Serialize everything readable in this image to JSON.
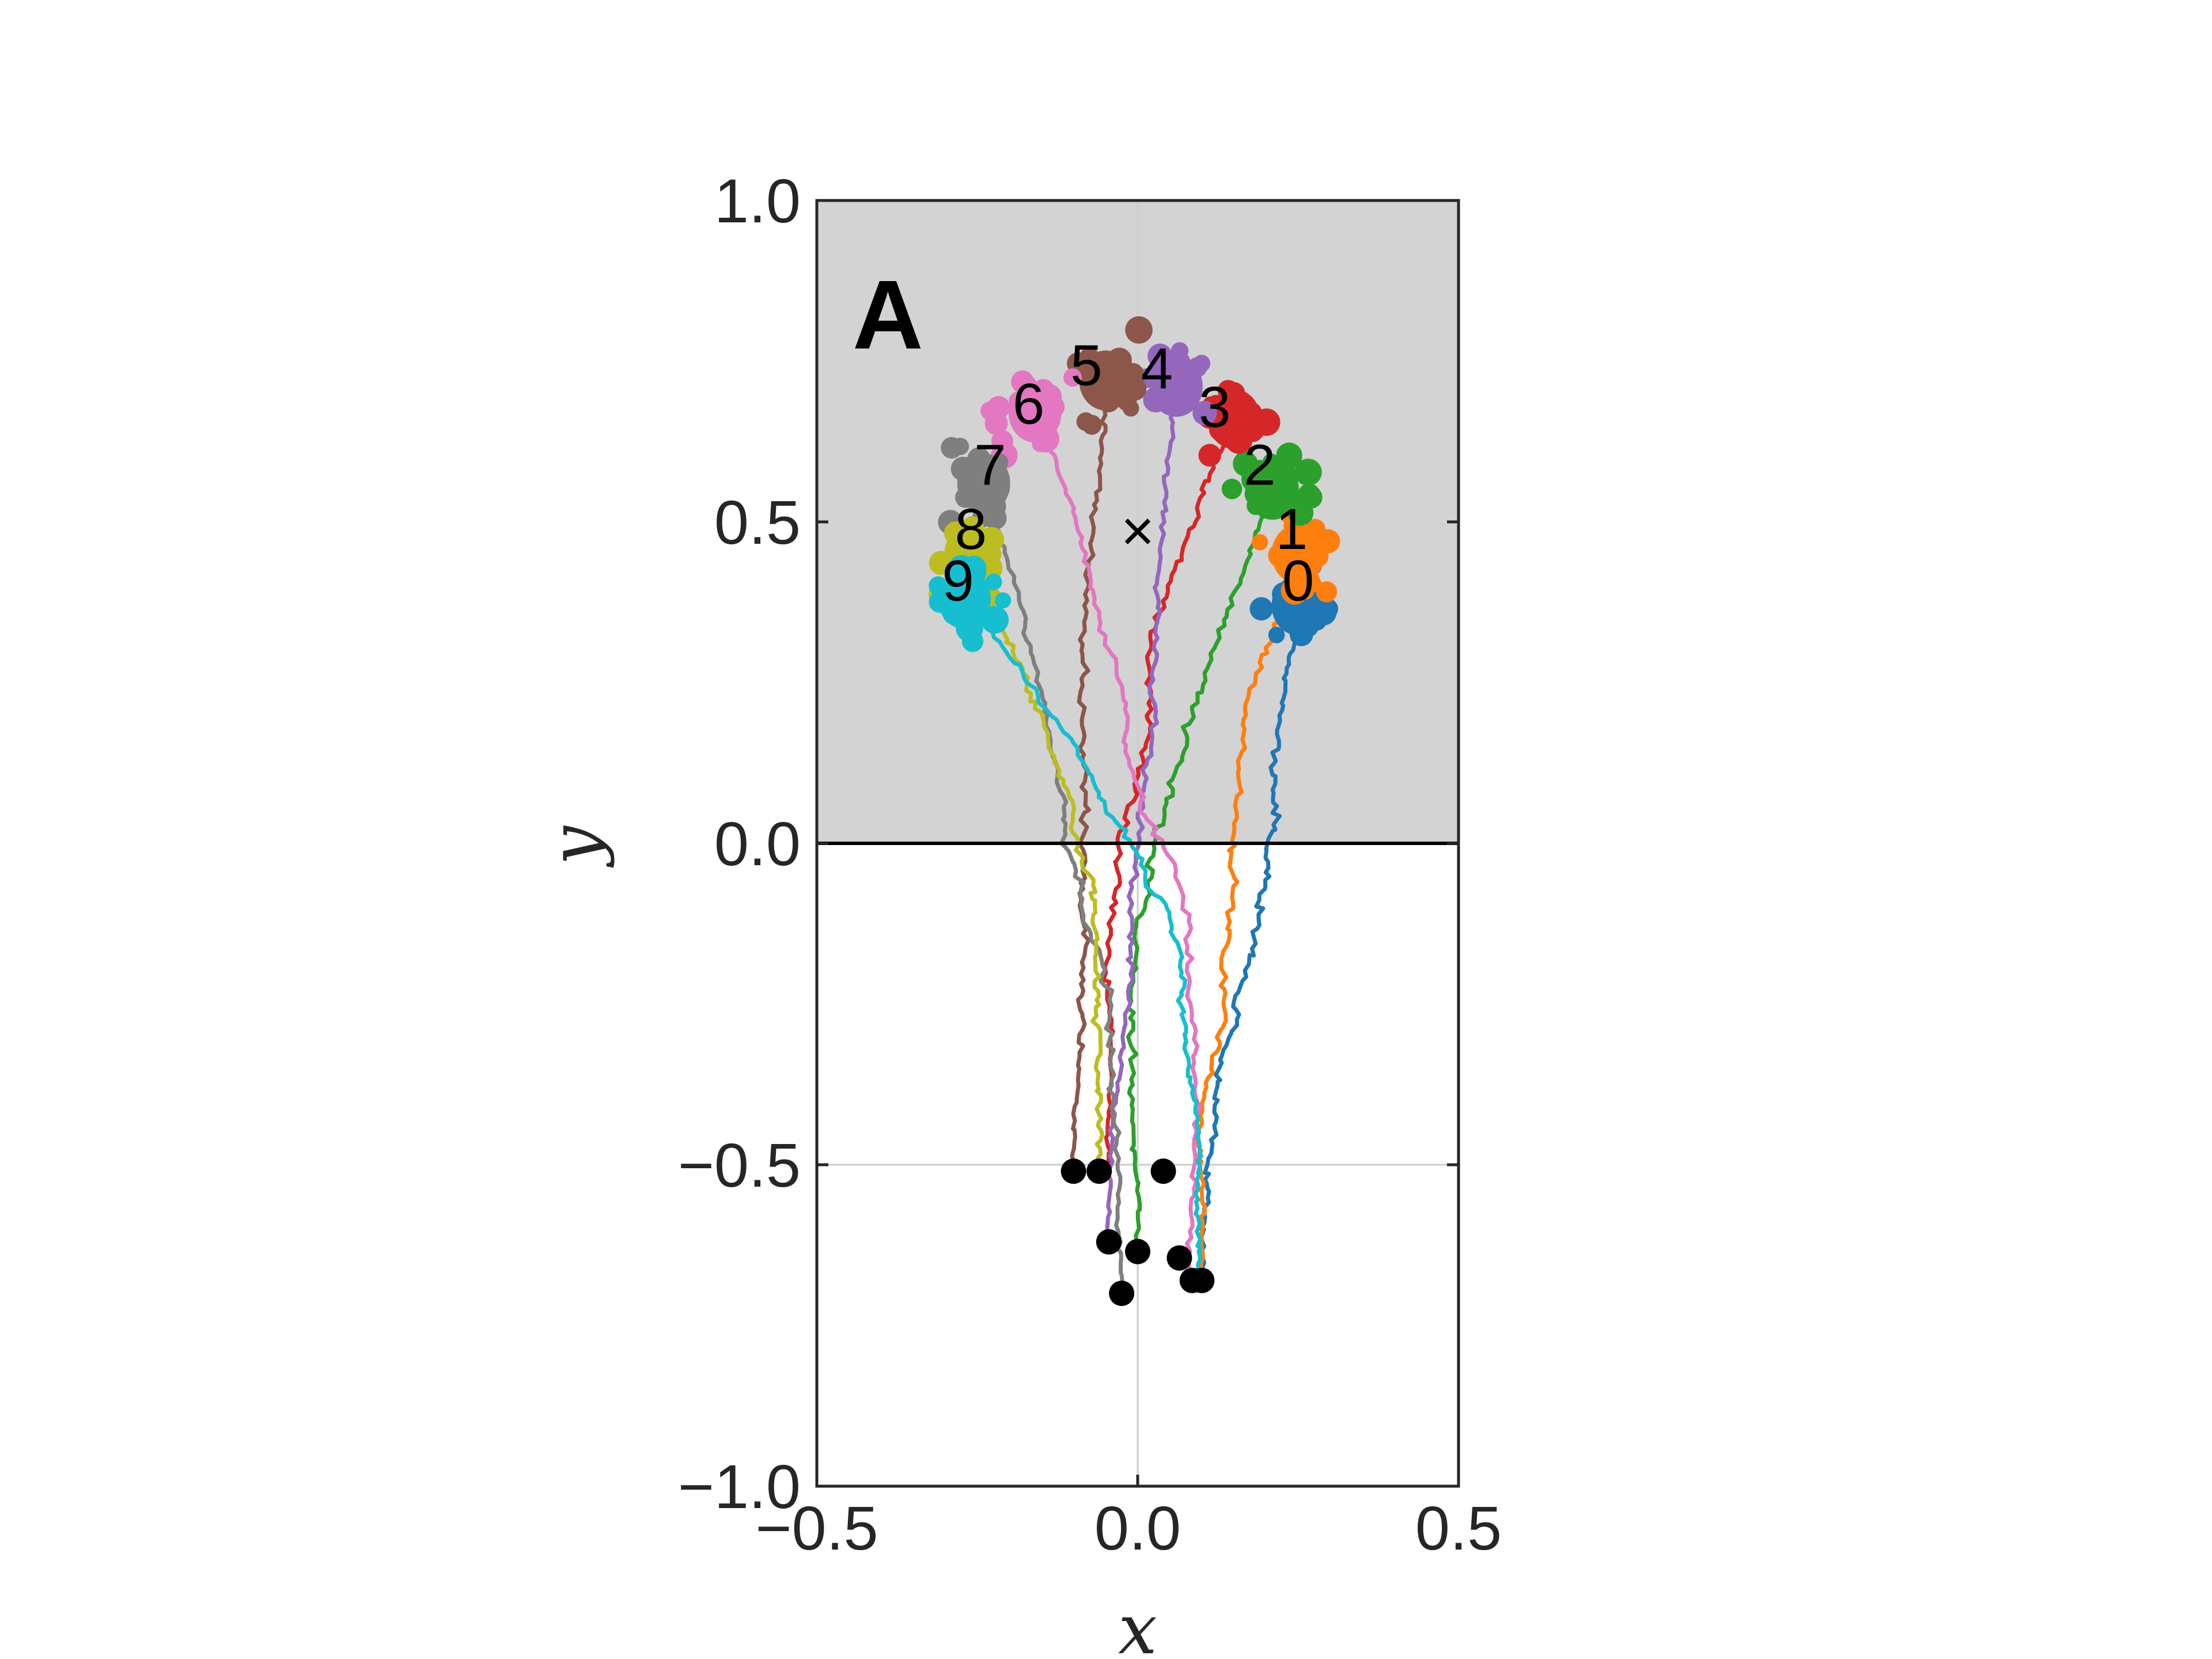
{
  "chart_data": {
    "type": "line",
    "panel_label": "A",
    "xlabel": "x",
    "ylabel": "y",
    "xlim": [
      -0.5,
      0.5
    ],
    "ylim": [
      -1.0,
      1.0
    ],
    "xticks": [
      -0.5,
      0.0,
      0.5
    ],
    "yticks": [
      -1.0,
      -0.5,
      0.0,
      0.5,
      1.0
    ],
    "xtick_labels": [
      "−0.5",
      "0.0",
      "0.5"
    ],
    "ytick_labels": [
      "−1.0",
      "−0.5",
      "0.0",
      "0.5",
      "1.0"
    ],
    "shaded_region": {
      "y_from": 0.0,
      "y_to": 1.0,
      "color": "#d3d3d3"
    },
    "center_marker": {
      "symbol": "×",
      "x": 0.0,
      "y": 0.5
    },
    "grid_lines": {
      "x": 0.0,
      "y": -0.5
    },
    "series": [
      {
        "label": "0",
        "color": "#1f77b4",
        "start": [
          0.1,
          -0.68
        ],
        "end": [
          0.25,
          0.37
        ],
        "label_pos": [
          0.25,
          0.41
        ]
      },
      {
        "label": "1",
        "color": "#ff7f0e",
        "start": [
          0.1,
          -0.68
        ],
        "end": [
          0.25,
          0.45
        ],
        "label_pos": [
          0.24,
          0.49
        ]
      },
      {
        "label": "2",
        "color": "#2ca02c",
        "start": [
          0.0,
          -0.635
        ],
        "end": [
          0.21,
          0.55
        ],
        "label_pos": [
          0.19,
          0.59
        ]
      },
      {
        "label": "3",
        "color": "#d62728",
        "start": [
          -0.045,
          -0.51
        ],
        "end": [
          0.15,
          0.66
        ],
        "label_pos": [
          0.12,
          0.68
        ]
      },
      {
        "label": "4",
        "color": "#9467bd",
        "start": [
          -0.045,
          -0.62
        ],
        "end": [
          0.06,
          0.71
        ],
        "label_pos": [
          0.03,
          0.74
        ]
      },
      {
        "label": "5",
        "color": "#8c564b",
        "start": [
          -0.1,
          -0.51
        ],
        "end": [
          -0.05,
          0.72
        ],
        "label_pos": [
          -0.08,
          0.745
        ]
      },
      {
        "label": "6",
        "color": "#e377c2",
        "start": [
          0.08,
          -0.68
        ],
        "end": [
          -0.16,
          0.67
        ],
        "label_pos": [
          -0.17,
          0.685
        ]
      },
      {
        "label": "7",
        "color": "#7f7f7f",
        "start": [
          -0.025,
          -0.7
        ],
        "end": [
          -0.24,
          0.56
        ],
        "label_pos": [
          -0.23,
          0.59
        ]
      },
      {
        "label": "8",
        "color": "#bcbd22",
        "start": [
          -0.06,
          -0.51
        ],
        "end": [
          -0.26,
          0.45
        ],
        "label_pos": [
          -0.26,
          0.49
        ]
      },
      {
        "label": "9",
        "color": "#17becf",
        "start": [
          0.095,
          -0.675
        ],
        "end": [
          -0.27,
          0.38
        ],
        "label_pos": [
          -0.28,
          0.41
        ]
      }
    ],
    "start_points": [
      [
        -0.1,
        -0.51
      ],
      [
        -0.06,
        -0.51
      ],
      [
        0.04,
        -0.51
      ],
      [
        -0.045,
        -0.62
      ],
      [
        0.0,
        -0.635
      ],
      [
        -0.025,
        -0.7
      ],
      [
        0.065,
        -0.645
      ],
      [
        0.085,
        -0.68
      ],
      [
        0.1,
        -0.68
      ]
    ]
  }
}
